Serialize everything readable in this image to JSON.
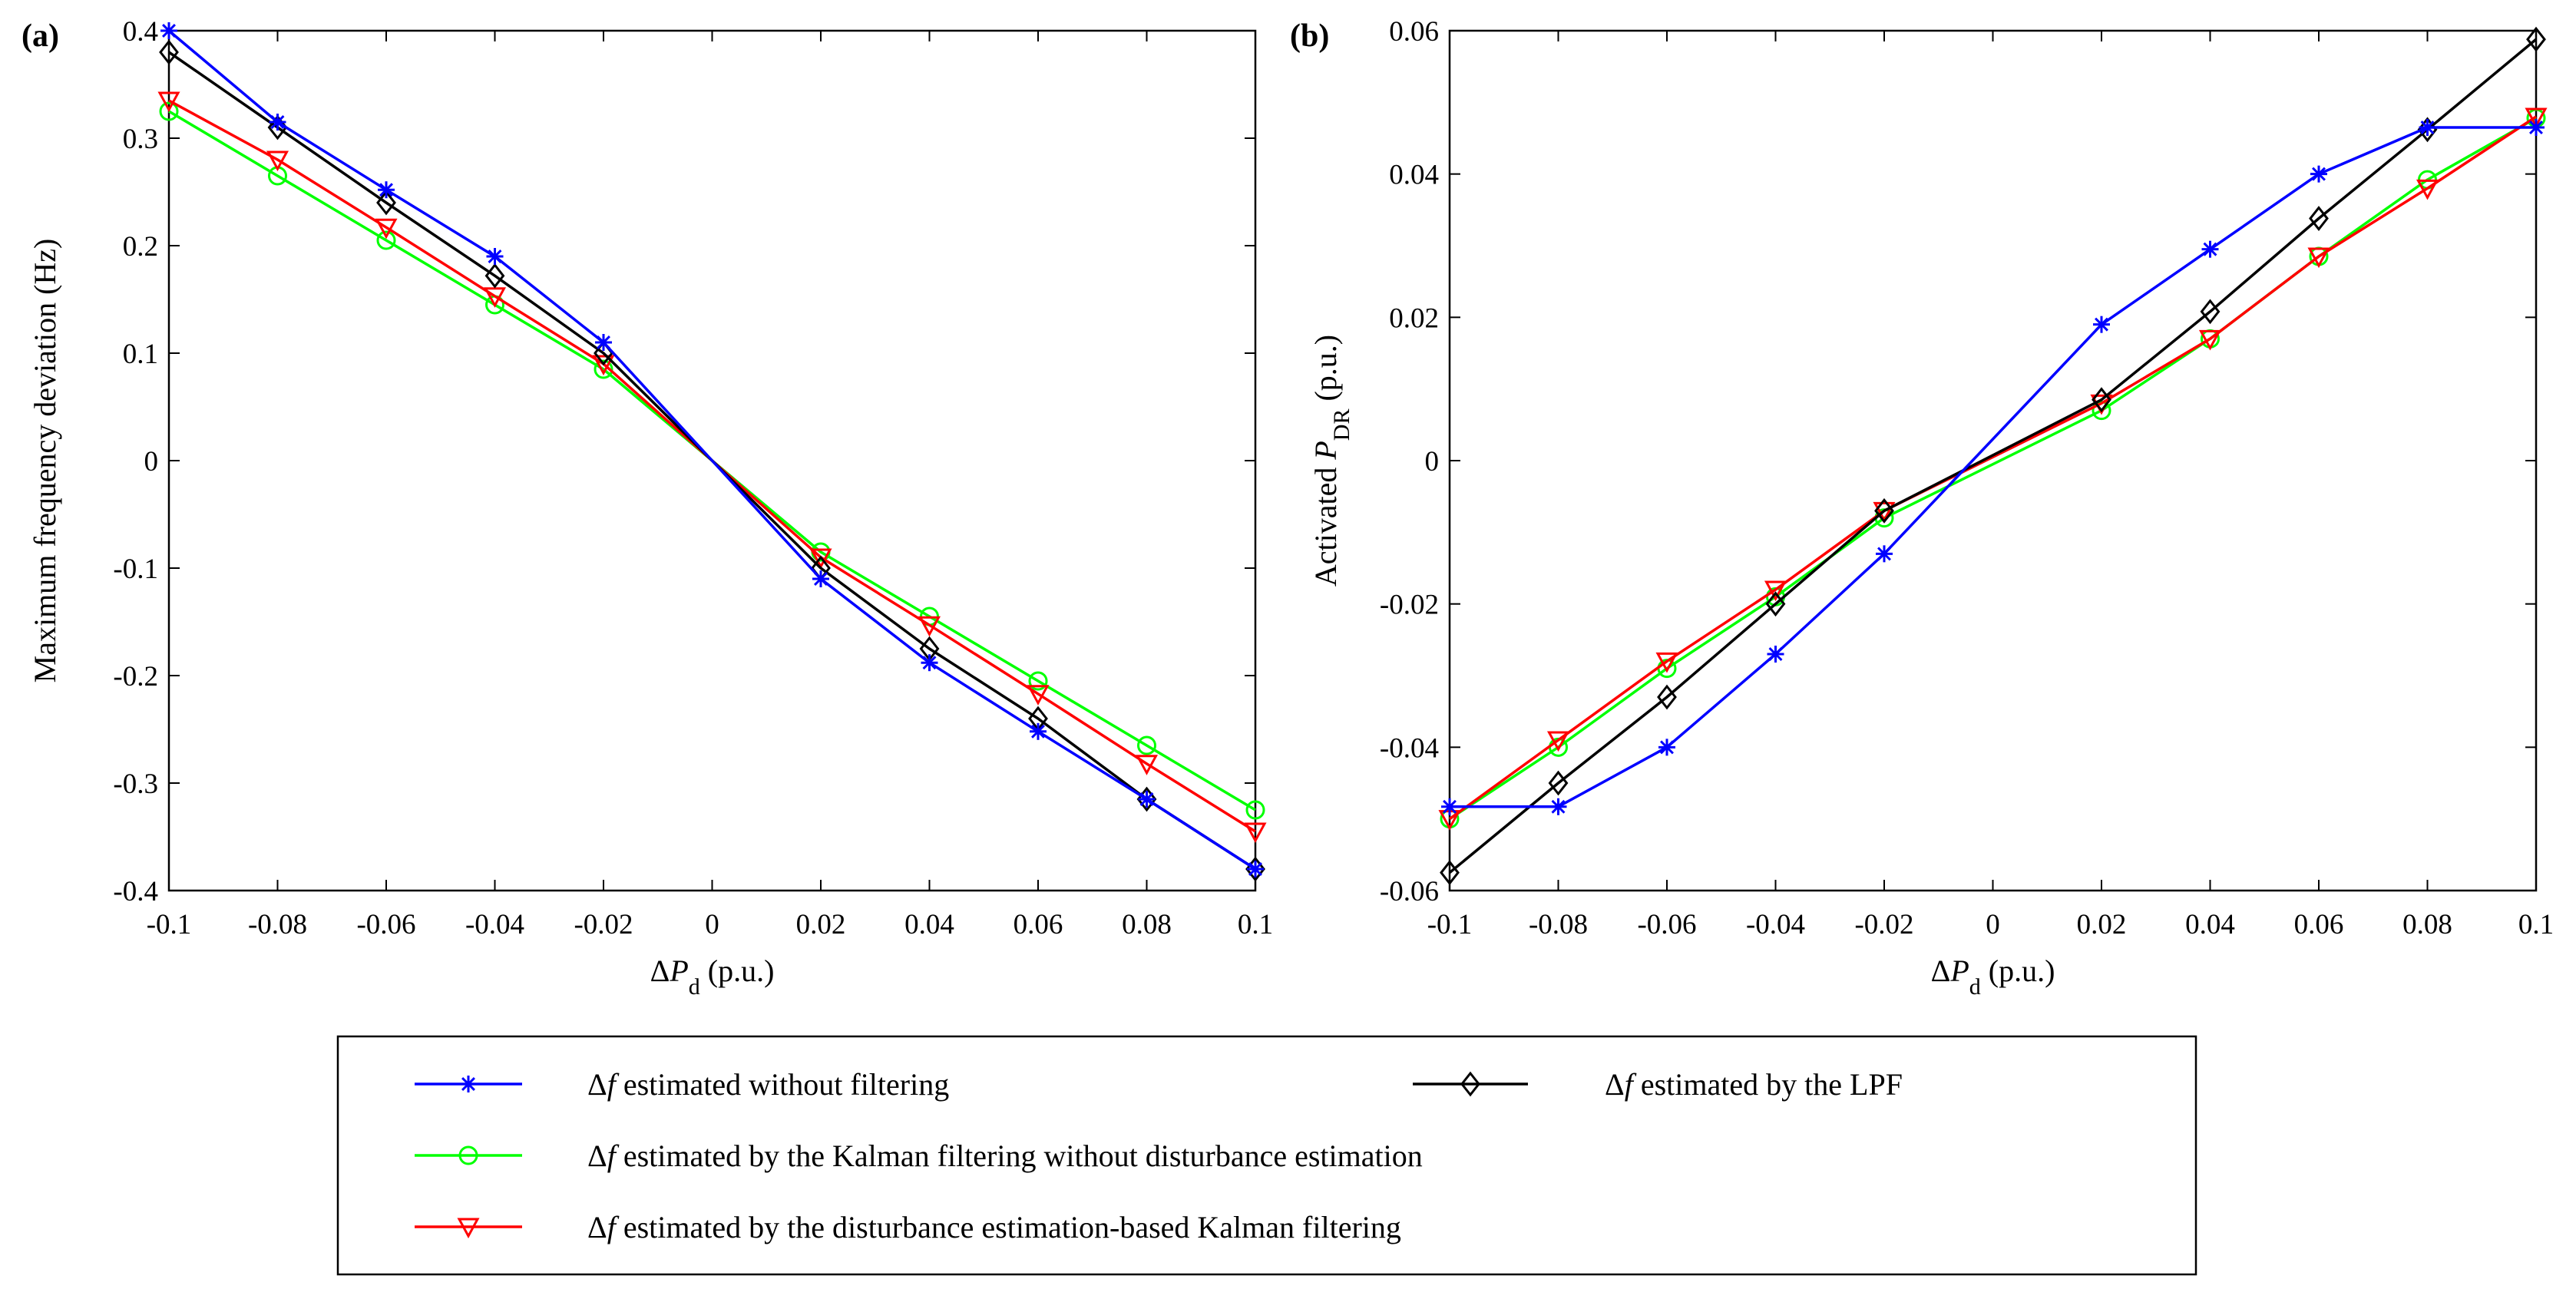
{
  "chart_data": [
    {
      "type": "line",
      "panel_label": "(a)",
      "xlabel_prefix": "Δ",
      "xlabel_var": "P",
      "xlabel_sub": "d",
      "xlabel_unit": " (p.u.)",
      "ylabel": "Maximum frequency deviation  (Hz)",
      "xlim": [
        -0.1,
        0.1
      ],
      "ylim": [
        -0.4,
        0.4
      ],
      "xticks": [
        -0.1,
        -0.08,
        -0.06,
        -0.04,
        -0.02,
        0,
        0.02,
        0.04,
        0.06,
        0.08,
        0.1
      ],
      "xtick_labels": [
        "-0.1",
        "-0.08",
        "-0.06",
        "-0.04",
        "-0.02",
        "0",
        "0.02",
        "0.04",
        "0.06",
        "0.08",
        "0.1"
      ],
      "yticks": [
        -0.4,
        -0.3,
        -0.2,
        -0.1,
        0,
        0.1,
        0.2,
        0.3,
        0.4
      ],
      "ytick_labels": [
        "-0.4",
        "-0.3",
        "-0.2",
        "-0.1",
        "0",
        "0.1",
        "0.2",
        "0.3",
        "0.4"
      ],
      "x": [
        -0.1,
        -0.08,
        -0.06,
        -0.04,
        -0.02,
        0,
        0.02,
        0.04,
        0.06,
        0.08,
        0.1
      ],
      "marker_mask": [
        1,
        1,
        1,
        1,
        1,
        0,
        1,
        1,
        1,
        1,
        1
      ],
      "series": [
        {
          "id": "no-filter",
          "values": [
            0.4,
            0.315,
            0.252,
            0.19,
            0.11,
            0,
            -0.11,
            -0.188,
            -0.252,
            -0.315,
            -0.38
          ]
        },
        {
          "id": "lpf",
          "values": [
            0.38,
            0.31,
            0.24,
            0.172,
            0.1,
            0,
            -0.1,
            -0.175,
            -0.24,
            -0.315,
            -0.38
          ]
        },
        {
          "id": "kalman",
          "values": [
            0.325,
            0.265,
            0.205,
            0.145,
            0.085,
            0,
            -0.085,
            -0.145,
            -0.205,
            -0.265,
            -0.325
          ]
        },
        {
          "id": "de-kalman",
          "values": [
            0.335,
            0.28,
            0.217,
            0.153,
            0.09,
            0,
            -0.09,
            -0.153,
            -0.217,
            -0.282,
            -0.345
          ]
        }
      ]
    },
    {
      "type": "line",
      "panel_label": "(b)",
      "xlabel_prefix": "Δ",
      "xlabel_var": "P",
      "xlabel_sub": "d",
      "xlabel_unit": " (p.u.)",
      "ylabel_prefix": "Activated ",
      "ylabel_var": "P",
      "ylabel_sub": "DR",
      "ylabel_unit": "  (p.u.)",
      "xlim": [
        -0.1,
        0.1
      ],
      "ylim": [
        -0.06,
        0.06
      ],
      "xticks": [
        -0.1,
        -0.08,
        -0.06,
        -0.04,
        -0.02,
        0,
        0.02,
        0.04,
        0.06,
        0.08,
        0.1
      ],
      "xtick_labels": [
        "-0.1",
        "-0.08",
        "-0.06",
        "-0.04",
        "-0.02",
        "0",
        "0.02",
        "0.04",
        "0.06",
        "0.08",
        "0.1"
      ],
      "yticks": [
        -0.06,
        -0.04,
        -0.02,
        0,
        0.02,
        0.04,
        0.06
      ],
      "ytick_labels": [
        "-0.06",
        "-0.04",
        "-0.02",
        "0",
        "0.02",
        "0.04",
        "0.06"
      ],
      "x": [
        -0.1,
        -0.08,
        -0.06,
        -0.04,
        -0.02,
        0.02,
        0.04,
        0.06,
        0.08,
        0.1
      ],
      "marker_mask": [
        1,
        1,
        1,
        1,
        1,
        1,
        1,
        1,
        1,
        1
      ],
      "series": [
        {
          "id": "no-filter",
          "values": [
            -0.0483,
            -0.0483,
            -0.04,
            -0.027,
            -0.013,
            0.019,
            0.0295,
            0.04,
            0.0465,
            0.0465
          ]
        },
        {
          "id": "lpf",
          "values": [
            -0.0575,
            -0.045,
            -0.033,
            -0.02,
            -0.007,
            0.0085,
            0.0208,
            0.0338,
            0.0462,
            0.0588
          ]
        },
        {
          "id": "kalman",
          "values": [
            -0.05,
            -0.04,
            -0.029,
            -0.019,
            -0.008,
            0.007,
            0.017,
            0.0285,
            0.0392,
            0.0478
          ]
        },
        {
          "id": "de-kalman",
          "values": [
            -0.05,
            -0.039,
            -0.028,
            -0.018,
            -0.007,
            0.008,
            0.017,
            0.0285,
            0.038,
            0.048
          ]
        }
      ]
    }
  ],
  "styles": {
    "no-filter": {
      "color": "#0000ff",
      "marker": "asterisk"
    },
    "lpf": {
      "color": "#000000",
      "marker": "diamond"
    },
    "kalman": {
      "color": "#00ff00",
      "marker": "circle"
    },
    "de-kalman": {
      "color": "#ff0000",
      "marker": "triangle-down"
    }
  },
  "legend": {
    "entries": [
      {
        "series": "no-filter",
        "prefix": "Δ",
        "var": "f",
        "text": " estimated without filtering"
      },
      {
        "series": "lpf",
        "prefix": "Δ",
        "var": "f",
        "text": " estimated by the LPF"
      },
      {
        "series": "kalman",
        "prefix": "Δ",
        "var": "f",
        "text": " estimated by the  Kalman filtering without disturbance estimation"
      },
      {
        "series": "de-kalman",
        "prefix": "Δ",
        "var": "f",
        "text": " estimated by the disturbance estimation-based Kalman filtering"
      }
    ]
  }
}
